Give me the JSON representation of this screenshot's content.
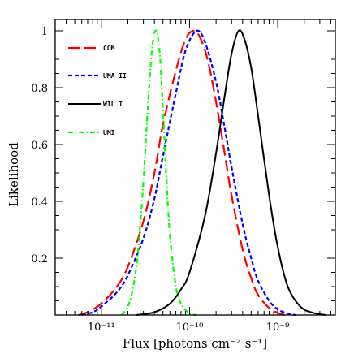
{
  "chart_data": {
    "type": "line",
    "xlabel": "Flux [photons cm⁻² s⁻¹]",
    "ylabel": "Likelihood",
    "x_scale": "log",
    "xlim": [
      3e-12,
      4.5e-09
    ],
    "ylim": [
      0,
      1.04
    ],
    "grid": false,
    "legend_position": "top-left",
    "x_tick_labels": [
      {
        "value": 1e-11,
        "label": "10⁻¹¹"
      },
      {
        "value": 1e-10,
        "label": "10⁻¹⁰"
      },
      {
        "value": 1e-09,
        "label": "10⁻⁹"
      }
    ],
    "y_tick_labels": [
      {
        "value": 0.2,
        "label": "0.2"
      },
      {
        "value": 0.4,
        "label": "0.4"
      },
      {
        "value": 0.6,
        "label": "0.6"
      },
      {
        "value": 0.8,
        "label": "0.8"
      },
      {
        "value": 1.0,
        "label": "1"
      }
    ],
    "series": [
      {
        "name": "COM",
        "color": "#ff0000",
        "dash": "long-dash",
        "x": [
          5.5e-12,
          7e-12,
          1e-11,
          1.5e-11,
          2e-11,
          3e-11,
          4e-11,
          5e-11,
          7e-11,
          9e-11,
          1.1e-10,
          1.3e-10,
          1.6e-10,
          2e-10,
          2.5e-10,
          3e-10,
          4e-10,
          5e-10,
          6e-10,
          8e-10,
          1e-09,
          1.2e-09
        ],
        "y": [
          0.0,
          0.01,
          0.04,
          0.1,
          0.17,
          0.33,
          0.5,
          0.67,
          0.86,
          0.97,
          1.0,
          0.98,
          0.9,
          0.75,
          0.57,
          0.42,
          0.23,
          0.13,
          0.07,
          0.025,
          0.008,
          0.0
        ]
      },
      {
        "name": "UMA II",
        "color": "#0000ff",
        "dash": "short-dash",
        "x": [
          6e-12,
          8e-12,
          1e-11,
          1.5e-11,
          2e-11,
          3e-11,
          4e-11,
          5e-11,
          7e-11,
          9e-11,
          1.2e-10,
          1.5e-10,
          2e-10,
          2.5e-10,
          3e-10,
          4e-10,
          5e-10,
          6e-10,
          8e-10,
          1e-09,
          1.3e-09,
          1.6e-09
        ],
        "y": [
          0.0,
          0.01,
          0.03,
          0.08,
          0.14,
          0.27,
          0.41,
          0.56,
          0.78,
          0.93,
          1.0,
          0.96,
          0.82,
          0.66,
          0.52,
          0.32,
          0.2,
          0.12,
          0.05,
          0.02,
          0.005,
          0.0
        ]
      },
      {
        "name": "WIL I",
        "color": "#000000",
        "dash": "solid",
        "x": [
          2.5e-11,
          4e-11,
          6e-11,
          8e-11,
          1e-10,
          1.5e-10,
          2e-10,
          2.5e-10,
          3e-10,
          3.6e-10,
          4.2e-10,
          5e-10,
          6e-10,
          8e-10,
          1e-09,
          1.3e-09,
          1.8e-09,
          2.5e-09,
          3.5e-09
        ],
        "y": [
          0.0,
          0.01,
          0.04,
          0.09,
          0.15,
          0.35,
          0.57,
          0.77,
          0.92,
          1.0,
          0.97,
          0.87,
          0.7,
          0.42,
          0.24,
          0.1,
          0.03,
          0.008,
          0.0
        ]
      },
      {
        "name": "UMI",
        "color": "#00ff00",
        "dash": "dash-dot",
        "x": [
          1.7e-11,
          2e-11,
          2.3e-11,
          2.6e-11,
          3e-11,
          3.4e-11,
          3.8e-11,
          4.2e-11,
          4.6e-11,
          5e-11,
          5.5e-11,
          6e-11,
          7e-11,
          8e-11,
          1e-10,
          1.2e-10
        ],
        "y": [
          0.0,
          0.03,
          0.1,
          0.22,
          0.47,
          0.75,
          0.95,
          1.0,
          0.92,
          0.72,
          0.47,
          0.28,
          0.1,
          0.04,
          0.005,
          0.0
        ]
      }
    ]
  }
}
